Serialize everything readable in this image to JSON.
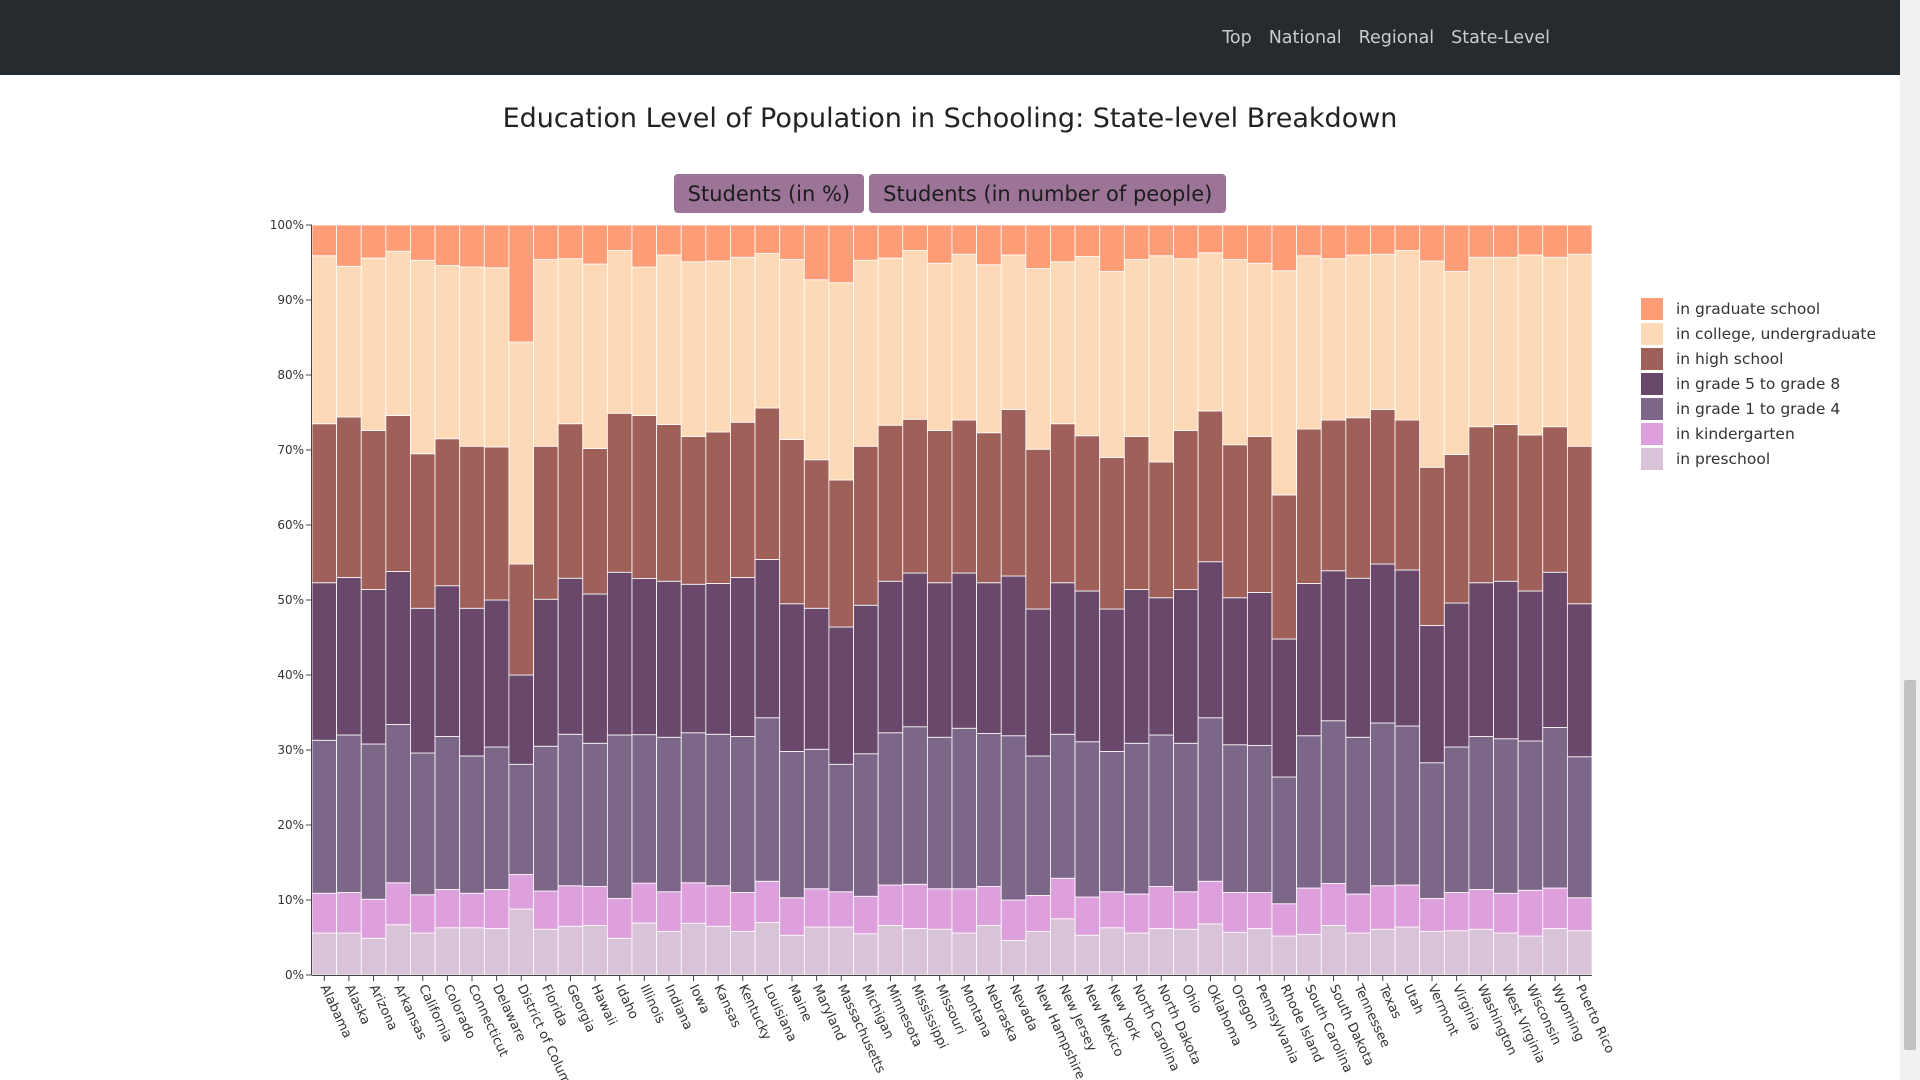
{
  "nav": {
    "links": [
      "Top",
      "National",
      "Regional",
      "State-Level"
    ]
  },
  "title": "Education Level of Population in Schooling: State-level Breakdown",
  "buttons": {
    "percent": "Students (in %)",
    "people": "Students (in number of people)"
  },
  "chart_data": {
    "type": "bar",
    "stacked": true,
    "ylim": [
      0,
      100
    ],
    "yticks": [
      "0%",
      "10%",
      "20%",
      "30%",
      "40%",
      "50%",
      "60%",
      "70%",
      "80%",
      "90%",
      "100%"
    ],
    "grid": false,
    "legend_position": "right",
    "categories": [
      "Alabama",
      "Alaska",
      "Arizona",
      "Arkansas",
      "California",
      "Colorado",
      "Connecticut",
      "Delaware",
      "District of Columbia",
      "Florida",
      "Georgia",
      "Hawaii",
      "Idaho",
      "Illinois",
      "Indiana",
      "Iowa",
      "Kansas",
      "Kentucky",
      "Louisiana",
      "Maine",
      "Maryland",
      "Massachusetts",
      "Michigan",
      "Minnesota",
      "Mississippi",
      "Missouri",
      "Montana",
      "Nebraska",
      "Nevada",
      "New Hampshire",
      "New Jersey",
      "New Mexico",
      "New York",
      "North Carolina",
      "North Dakota",
      "Ohio",
      "Oklahoma",
      "Oregon",
      "Pennsylvania",
      "Rhode Island",
      "South Carolina",
      "South Dakota",
      "Tennessee",
      "Texas",
      "Utah",
      "Vermont",
      "Virginia",
      "Washington",
      "West Virginia",
      "Wisconsin",
      "Wyoming",
      "Puerto Rico"
    ],
    "series": [
      {
        "name": "in preschool",
        "color": "#d8c3d8",
        "values": [
          5.6,
          5.6,
          4.9,
          6.7,
          5.6,
          6.3,
          6.3,
          6.2,
          8.8,
          6.1,
          6.5,
          6.6,
          4.9,
          6.8,
          5.8,
          6.9,
          6.5,
          5.8,
          7.0,
          5.3,
          6.4,
          6.4,
          5.5,
          6.6,
          6.2,
          6.1,
          5.6,
          6.6,
          4.6,
          5.8,
          7.5,
          5.3,
          6.3,
          5.6,
          6.2,
          6.1,
          6.8,
          5.7,
          6.2,
          5.2,
          5.4,
          6.6,
          5.6,
          6.1,
          6.4,
          5.8,
          5.9,
          6.1,
          5.6,
          5.2,
          6.2,
          5.9
        ]
      },
      {
        "name": "in kindergarten",
        "color": "#dda0dd",
        "values": [
          5.3,
          5.4,
          5.2,
          5.6,
          5.1,
          5.1,
          4.6,
          5.2,
          4.6,
          5.1,
          5.4,
          5.2,
          5.3,
          5.2,
          5.3,
          5.4,
          5.4,
          5.2,
          5.5,
          5.0,
          5.1,
          4.7,
          5.0,
          5.4,
          5.9,
          5.4,
          5.9,
          5.2,
          5.4,
          4.8,
          5.4,
          5.1,
          4.8,
          5.2,
          5.6,
          5.0,
          5.7,
          5.3,
          4.8,
          4.3,
          6.2,
          5.6,
          5.2,
          5.8,
          5.6,
          4.4,
          5.1,
          5.3,
          5.3,
          6.1,
          5.4,
          4.4
        ]
      },
      {
        "name": "in grade 1 to grade 4",
        "color": "#7c6789",
        "values": [
          20.4,
          21.0,
          20.7,
          21.1,
          18.9,
          20.4,
          18.3,
          19.0,
          14.7,
          19.3,
          20.2,
          19.1,
          21.8,
          19.4,
          20.6,
          20.0,
          20.2,
          20.8,
          21.8,
          19.5,
          18.6,
          17.0,
          19.0,
          20.3,
          21.0,
          20.2,
          21.4,
          20.4,
          21.9,
          18.6,
          19.2,
          20.7,
          18.7,
          20.1,
          20.2,
          19.8,
          21.8,
          19.7,
          19.6,
          16.9,
          20.3,
          21.7,
          20.9,
          21.7,
          21.2,
          18.1,
          19.4,
          20.4,
          20.6,
          19.9,
          21.4,
          18.8
        ]
      },
      {
        "name": "in grade 5 to grade 8",
        "color": "#69486c",
        "values": [
          21.0,
          21.0,
          20.6,
          20.4,
          19.3,
          20.1,
          19.7,
          19.6,
          11.9,
          19.6,
          20.8,
          19.9,
          21.7,
          20.4,
          20.8,
          19.8,
          20.1,
          21.2,
          21.1,
          19.7,
          18.8,
          18.3,
          19.8,
          20.2,
          20.5,
          20.6,
          20.7,
          20.1,
          21.3,
          19.6,
          20.2,
          20.1,
          19.0,
          20.5,
          18.3,
          20.5,
          20.8,
          19.6,
          20.4,
          18.4,
          20.3,
          20.0,
          21.2,
          21.2,
          20.8,
          18.3,
          19.2,
          20.5,
          21.0,
          20.0,
          20.7,
          20.4
        ]
      },
      {
        "name": "in high school",
        "color": "#a0605a",
        "values": [
          21.2,
          21.4,
          21.2,
          20.8,
          20.6,
          19.6,
          21.6,
          20.4,
          14.8,
          20.4,
          20.6,
          19.4,
          21.2,
          21.3,
          20.9,
          19.7,
          20.2,
          20.7,
          20.2,
          21.9,
          19.8,
          19.6,
          21.2,
          20.8,
          20.5,
          20.3,
          20.4,
          20.0,
          22.2,
          21.3,
          21.2,
          20.7,
          20.2,
          20.4,
          18.1,
          21.2,
          20.1,
          20.4,
          20.8,
          19.2,
          20.6,
          20.1,
          21.4,
          20.6,
          20.0,
          21.1,
          19.8,
          20.8,
          20.9,
          20.8,
          19.4,
          21.0
        ]
      },
      {
        "name": "in college, undergraduate",
        "color": "#fdd9b8",
        "values": [
          22.4,
          20.1,
          23.0,
          21.9,
          25.8,
          23.1,
          23.9,
          23.9,
          29.6,
          24.9,
          22.0,
          24.6,
          21.7,
          19.4,
          22.6,
          23.3,
          22.8,
          22.0,
          20.6,
          24.0,
          24.0,
          26.3,
          24.8,
          22.3,
          22.5,
          22.3,
          22.1,
          22.4,
          20.6,
          24.1,
          21.6,
          23.9,
          24.8,
          23.6,
          27.5,
          22.9,
          21.1,
          24.7,
          23.1,
          29.9,
          23.1,
          21.5,
          21.7,
          20.7,
          22.6,
          27.5,
          24.4,
          22.6,
          22.3,
          24.0,
          22.6,
          25.6
        ]
      },
      {
        "name": "in graduate school",
        "color": "#fc9d78",
        "values": [
          4.1,
          5.5,
          4.4,
          3.5,
          4.7,
          5.4,
          5.6,
          5.7,
          15.6,
          4.6,
          4.5,
          5.2,
          3.4,
          5.5,
          4.0,
          4.9,
          4.8,
          4.3,
          3.8,
          4.6,
          7.3,
          7.7,
          4.7,
          4.4,
          3.4,
          5.1,
          3.9,
          5.3,
          4.0,
          5.8,
          4.9,
          4.2,
          6.2,
          4.6,
          4.1,
          4.5,
          3.7,
          4.6,
          5.1,
          6.1,
          4.1,
          4.5,
          4.0,
          3.9,
          3.4,
          4.8,
          6.2,
          4.3,
          4.3,
          4.0,
          4.3,
          3.9
        ]
      }
    ]
  }
}
